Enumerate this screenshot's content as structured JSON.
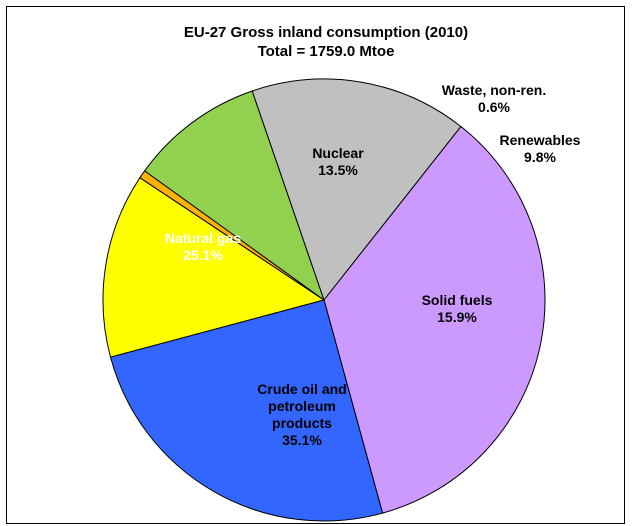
{
  "chart_data": {
    "type": "pie",
    "title": "EU-27 Gross inland consumption (2010)",
    "subtitle": "Total = 1759.0 Mtoe",
    "slices": [
      {
        "label": "Nuclear",
        "value": 13.5,
        "value_label": "13.5%",
        "color": "#ffff00",
        "label_color": "#000000"
      },
      {
        "label": "Waste, non-ren.",
        "value": 0.6,
        "value_label": "0.6%",
        "color": "#ffb300",
        "label_color": "#000000"
      },
      {
        "label": "Renewables",
        "value": 9.8,
        "value_label": "9.8%",
        "color": "#92d050",
        "label_color": "#000000"
      },
      {
        "label": "Solid fuels",
        "value": 15.9,
        "value_label": "15.9%",
        "color": "#c0c0c0",
        "label_color": "#000000"
      },
      {
        "label": "Crude oil and petroleum products",
        "label_lines": [
          "Crude oil and",
          "petroleum",
          "products"
        ],
        "value": 35.1,
        "value_label": "35.1%",
        "color": "#cc99ff",
        "label_color": "#000000"
      },
      {
        "label": "Natural gas",
        "value": 25.1,
        "value_label": "25.1%",
        "color": "#3366ff",
        "label_color": "#ffffff"
      }
    ]
  }
}
